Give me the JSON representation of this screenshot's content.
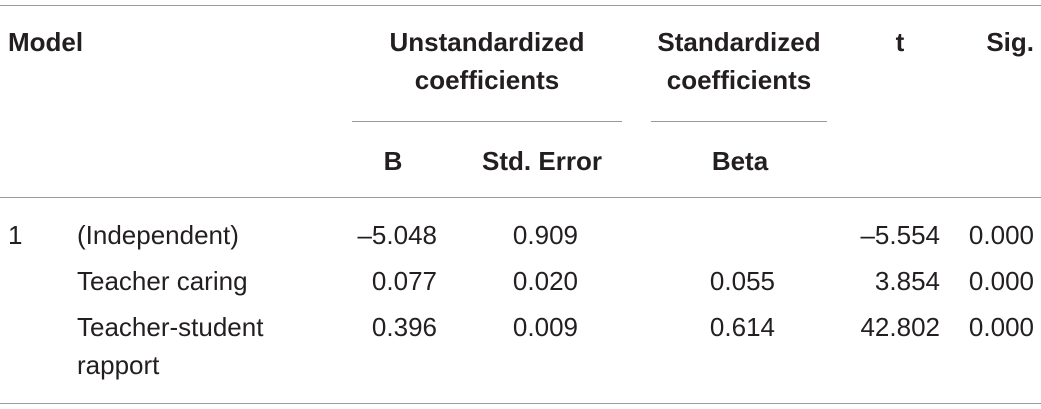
{
  "table": {
    "header": {
      "model": "Model",
      "unstandardized": "Unstandardized coefficients",
      "standardized": "Standardized coefficients",
      "t": "t",
      "sig": "Sig.",
      "b": "B",
      "std_error": "Std. Error",
      "beta": "Beta"
    },
    "rows": [
      {
        "model": "1",
        "label": "(Independent)",
        "b": "–5.048",
        "std_error": "0.909",
        "t": "–5.554",
        "sig": "0.000"
      },
      {
        "label": "Teacher caring",
        "b": "0.077",
        "std_error": "0.020",
        "beta": "0.055",
        "t": "3.854",
        "sig": "0.000"
      },
      {
        "label": "Teacher-student rapport",
        "b": "0.396",
        "std_error": "0.009",
        "beta": "0.614",
        "t": "42.802",
        "sig": "0.000"
      }
    ]
  }
}
